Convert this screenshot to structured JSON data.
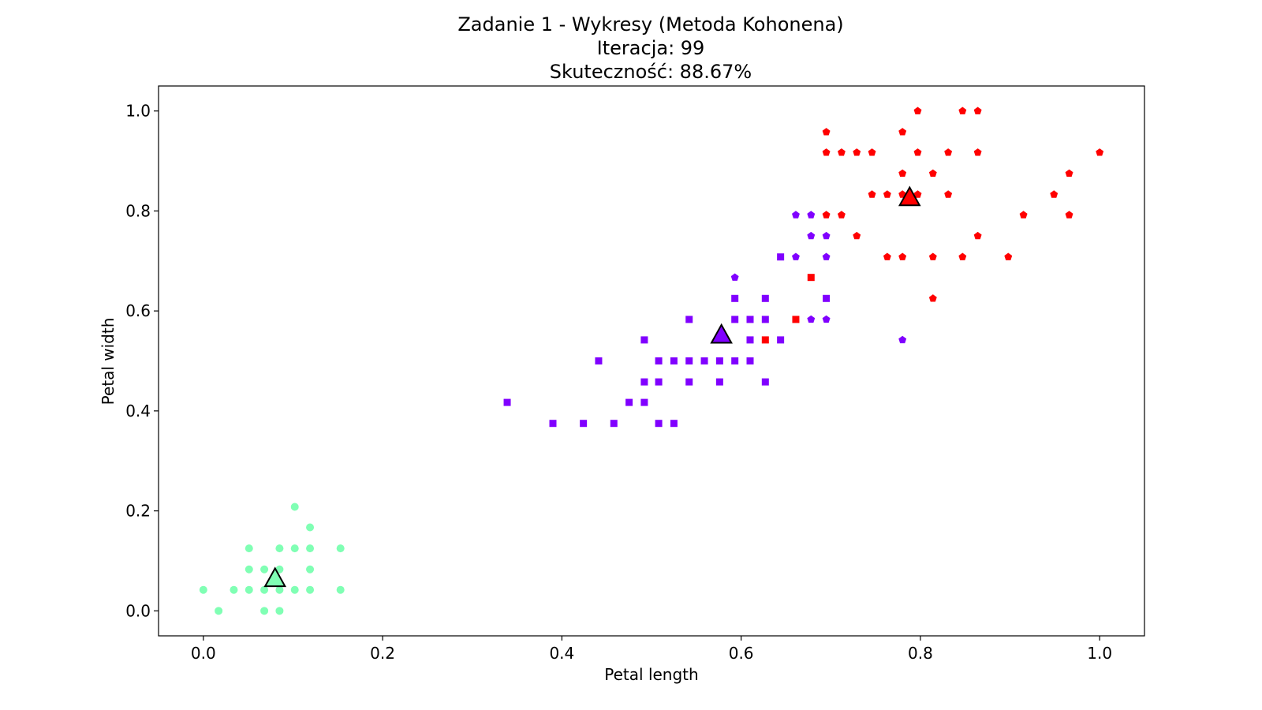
{
  "chart_data": {
    "type": "scatter",
    "title_lines": [
      "Zadanie 1 - Wykresy (Metoda Kohonena)",
      "Iteracja: 99",
      "Skuteczność: 88.67%"
    ],
    "xlabel": "Petal length",
    "ylabel": "Petal width",
    "xlim": [
      -0.05,
      1.05
    ],
    "ylim": [
      -0.05,
      1.05
    ],
    "xticks": [
      0.0,
      0.2,
      0.4,
      0.6,
      0.8,
      1.0
    ],
    "yticks": [
      0.0,
      0.2,
      0.4,
      0.6,
      0.8,
      1.0
    ],
    "tick_labels_x": [
      "0.0",
      "0.2",
      "0.4",
      "0.6",
      "0.8",
      "1.0"
    ],
    "tick_labels_y": [
      "0.0",
      "0.2",
      "0.4",
      "0.6",
      "0.8",
      "1.0"
    ],
    "grid": false,
    "legend": "none",
    "colors": {
      "green": "#80ffb4",
      "purple": "#8000ff",
      "red": "#ff0000"
    },
    "series": [
      {
        "marker": "circle",
        "points": [
          {
            "x": 0.0,
            "y": 0.042,
            "c": "green"
          },
          {
            "x": 0.017,
            "y": 0.0,
            "c": "green"
          },
          {
            "x": 0.034,
            "y": 0.042,
            "c": "green"
          },
          {
            "x": 0.051,
            "y": 0.042,
            "c": "green"
          },
          {
            "x": 0.051,
            "y": 0.083,
            "c": "green"
          },
          {
            "x": 0.051,
            "y": 0.125,
            "c": "green"
          },
          {
            "x": 0.068,
            "y": 0.0,
            "c": "green"
          },
          {
            "x": 0.068,
            "y": 0.042,
            "c": "green"
          },
          {
            "x": 0.068,
            "y": 0.083,
            "c": "green"
          },
          {
            "x": 0.085,
            "y": 0.0,
            "c": "green"
          },
          {
            "x": 0.085,
            "y": 0.042,
            "c": "green"
          },
          {
            "x": 0.085,
            "y": 0.083,
            "c": "green"
          },
          {
            "x": 0.085,
            "y": 0.125,
            "c": "green"
          },
          {
            "x": 0.102,
            "y": 0.042,
            "c": "green"
          },
          {
            "x": 0.102,
            "y": 0.125,
            "c": "green"
          },
          {
            "x": 0.102,
            "y": 0.208,
            "c": "green"
          },
          {
            "x": 0.119,
            "y": 0.042,
            "c": "green"
          },
          {
            "x": 0.119,
            "y": 0.083,
            "c": "green"
          },
          {
            "x": 0.119,
            "y": 0.125,
            "c": "green"
          },
          {
            "x": 0.119,
            "y": 0.167,
            "c": "green"
          },
          {
            "x": 0.153,
            "y": 0.042,
            "c": "green"
          },
          {
            "x": 0.153,
            "y": 0.125,
            "c": "green"
          }
        ]
      },
      {
        "marker": "square",
        "points": [
          {
            "x": 0.339,
            "y": 0.417,
            "c": "purple"
          },
          {
            "x": 0.39,
            "y": 0.375,
            "c": "purple"
          },
          {
            "x": 0.424,
            "y": 0.375,
            "c": "purple"
          },
          {
            "x": 0.441,
            "y": 0.5,
            "c": "purple"
          },
          {
            "x": 0.458,
            "y": 0.375,
            "c": "purple"
          },
          {
            "x": 0.475,
            "y": 0.417,
            "c": "purple"
          },
          {
            "x": 0.492,
            "y": 0.417,
            "c": "purple"
          },
          {
            "x": 0.492,
            "y": 0.458,
            "c": "purple"
          },
          {
            "x": 0.492,
            "y": 0.542,
            "c": "purple"
          },
          {
            "x": 0.508,
            "y": 0.375,
            "c": "purple"
          },
          {
            "x": 0.508,
            "y": 0.458,
            "c": "purple"
          },
          {
            "x": 0.508,
            "y": 0.5,
            "c": "purple"
          },
          {
            "x": 0.525,
            "y": 0.375,
            "c": "purple"
          },
          {
            "x": 0.525,
            "y": 0.5,
            "c": "purple"
          },
          {
            "x": 0.542,
            "y": 0.458,
            "c": "purple"
          },
          {
            "x": 0.542,
            "y": 0.5,
            "c": "purple"
          },
          {
            "x": 0.542,
            "y": 0.583,
            "c": "purple"
          },
          {
            "x": 0.559,
            "y": 0.5,
            "c": "purple"
          },
          {
            "x": 0.576,
            "y": 0.458,
            "c": "purple"
          },
          {
            "x": 0.576,
            "y": 0.5,
            "c": "purple"
          },
          {
            "x": 0.593,
            "y": 0.5,
            "c": "purple"
          },
          {
            "x": 0.593,
            "y": 0.583,
            "c": "purple"
          },
          {
            "x": 0.593,
            "y": 0.625,
            "c": "purple"
          },
          {
            "x": 0.61,
            "y": 0.5,
            "c": "purple"
          },
          {
            "x": 0.61,
            "y": 0.542,
            "c": "purple"
          },
          {
            "x": 0.61,
            "y": 0.583,
            "c": "purple"
          },
          {
            "x": 0.627,
            "y": 0.458,
            "c": "purple"
          },
          {
            "x": 0.627,
            "y": 0.583,
            "c": "purple"
          },
          {
            "x": 0.627,
            "y": 0.625,
            "c": "purple"
          },
          {
            "x": 0.644,
            "y": 0.542,
            "c": "purple"
          },
          {
            "x": 0.644,
            "y": 0.708,
            "c": "purple"
          },
          {
            "x": 0.695,
            "y": 0.625,
            "c": "purple"
          },
          {
            "x": 0.627,
            "y": 0.542,
            "c": "red"
          },
          {
            "x": 0.661,
            "y": 0.583,
            "c": "red"
          },
          {
            "x": 0.678,
            "y": 0.667,
            "c": "red"
          }
        ]
      },
      {
        "marker": "pentagon",
        "points": [
          {
            "x": 0.593,
            "y": 0.667,
            "c": "purple"
          },
          {
            "x": 0.661,
            "y": 0.708,
            "c": "purple"
          },
          {
            "x": 0.661,
            "y": 0.792,
            "c": "purple"
          },
          {
            "x": 0.678,
            "y": 0.583,
            "c": "purple"
          },
          {
            "x": 0.678,
            "y": 0.75,
            "c": "purple"
          },
          {
            "x": 0.678,
            "y": 0.792,
            "c": "purple"
          },
          {
            "x": 0.695,
            "y": 0.583,
            "c": "purple"
          },
          {
            "x": 0.695,
            "y": 0.708,
            "c": "purple"
          },
          {
            "x": 0.695,
            "y": 0.75,
            "c": "purple"
          },
          {
            "x": 0.78,
            "y": 0.542,
            "c": "purple"
          },
          {
            "x": 0.695,
            "y": 0.792,
            "c": "red"
          },
          {
            "x": 0.695,
            "y": 0.917,
            "c": "red"
          },
          {
            "x": 0.695,
            "y": 0.958,
            "c": "red"
          },
          {
            "x": 0.712,
            "y": 0.792,
            "c": "red"
          },
          {
            "x": 0.712,
            "y": 0.917,
            "c": "red"
          },
          {
            "x": 0.729,
            "y": 0.75,
            "c": "red"
          },
          {
            "x": 0.729,
            "y": 0.917,
            "c": "red"
          },
          {
            "x": 0.746,
            "y": 0.833,
            "c": "red"
          },
          {
            "x": 0.746,
            "y": 0.917,
            "c": "red"
          },
          {
            "x": 0.763,
            "y": 0.708,
            "c": "red"
          },
          {
            "x": 0.763,
            "y": 0.833,
            "c": "red"
          },
          {
            "x": 0.78,
            "y": 0.708,
            "c": "red"
          },
          {
            "x": 0.78,
            "y": 0.833,
            "c": "red"
          },
          {
            "x": 0.78,
            "y": 0.875,
            "c": "red"
          },
          {
            "x": 0.78,
            "y": 0.958,
            "c": "red"
          },
          {
            "x": 0.797,
            "y": 0.833,
            "c": "red"
          },
          {
            "x": 0.797,
            "y": 0.917,
            "c": "red"
          },
          {
            "x": 0.797,
            "y": 1.0,
            "c": "red"
          },
          {
            "x": 0.814,
            "y": 0.625,
            "c": "red"
          },
          {
            "x": 0.814,
            "y": 0.708,
            "c": "red"
          },
          {
            "x": 0.814,
            "y": 0.875,
            "c": "red"
          },
          {
            "x": 0.831,
            "y": 0.833,
            "c": "red"
          },
          {
            "x": 0.831,
            "y": 0.917,
            "c": "red"
          },
          {
            "x": 0.847,
            "y": 0.708,
            "c": "red"
          },
          {
            "x": 0.847,
            "y": 1.0,
            "c": "red"
          },
          {
            "x": 0.864,
            "y": 0.75,
            "c": "red"
          },
          {
            "x": 0.864,
            "y": 0.917,
            "c": "red"
          },
          {
            "x": 0.864,
            "y": 1.0,
            "c": "red"
          },
          {
            "x": 0.898,
            "y": 0.708,
            "c": "red"
          },
          {
            "x": 0.915,
            "y": 0.792,
            "c": "red"
          },
          {
            "x": 0.949,
            "y": 0.833,
            "c": "red"
          },
          {
            "x": 0.966,
            "y": 0.792,
            "c": "red"
          },
          {
            "x": 0.966,
            "y": 0.875,
            "c": "red"
          },
          {
            "x": 1.0,
            "y": 0.917,
            "c": "red"
          }
        ]
      }
    ],
    "centroids": [
      {
        "x": 0.08,
        "y": 0.063,
        "c": "green"
      },
      {
        "x": 0.578,
        "y": 0.55,
        "c": "purple"
      },
      {
        "x": 0.788,
        "y": 0.825,
        "c": "red"
      }
    ]
  }
}
